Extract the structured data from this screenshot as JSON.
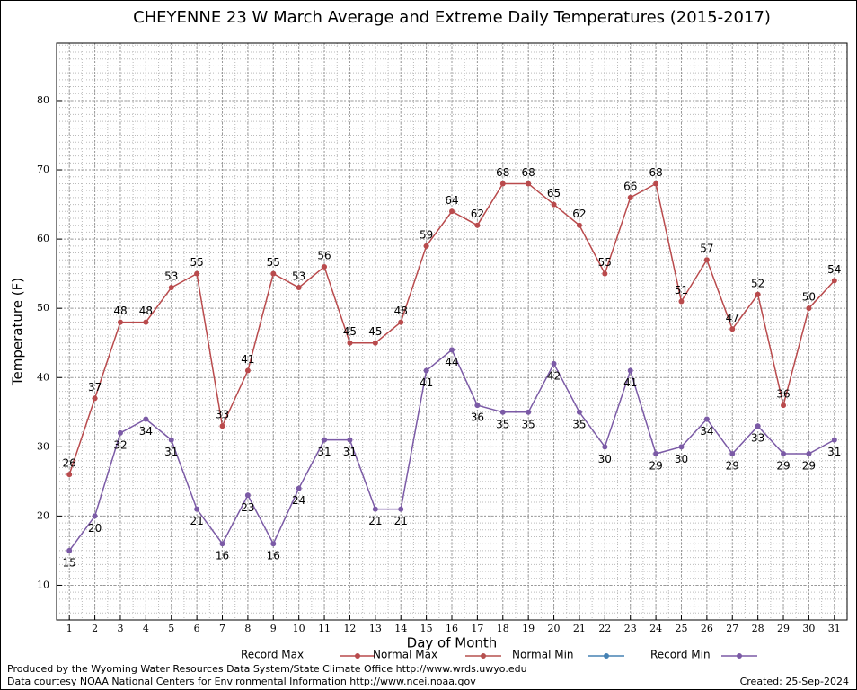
{
  "chart_data": {
    "type": "line",
    "title": "CHEYENNE 23 W March Average and Extreme Daily Temperatures (2015-2017)",
    "x_label": "Day of Month",
    "y_label": "Temperature (F)",
    "x": [
      1,
      2,
      3,
      4,
      5,
      6,
      7,
      8,
      9,
      10,
      11,
      12,
      13,
      14,
      15,
      16,
      17,
      18,
      19,
      20,
      21,
      22,
      23,
      24,
      25,
      26,
      27,
      28,
      29,
      30,
      31
    ],
    "xlim": [
      0.5,
      31.5
    ],
    "xticks": [
      1,
      2,
      3,
      4,
      5,
      6,
      7,
      8,
      9,
      10,
      11,
      12,
      13,
      14,
      15,
      16,
      17,
      18,
      19,
      20,
      21,
      22,
      23,
      24,
      25,
      26,
      27,
      28,
      29,
      30,
      31
    ],
    "ylim": [
      5,
      88.3
    ],
    "yticks": [
      10,
      20,
      30,
      40,
      50,
      60,
      70,
      80
    ],
    "grid": true,
    "series": [
      {
        "name": "Record Max",
        "color": "#b94a4c",
        "values": [
          26,
          37,
          48,
          48,
          53,
          55,
          33,
          41,
          55,
          53,
          56,
          45,
          45,
          48,
          59,
          64,
          62,
          68,
          68,
          65,
          62,
          55,
          66,
          68,
          51,
          57,
          47,
          52,
          36,
          50,
          54
        ]
      },
      {
        "name": "Normal Max",
        "color": "#b5504f",
        "values": [
          null,
          null,
          null,
          null,
          null,
          null,
          null,
          null,
          null,
          null,
          null,
          null,
          null,
          null,
          null,
          null,
          null,
          null,
          null,
          null,
          null,
          null,
          null,
          null,
          null,
          null,
          null,
          null,
          null,
          null,
          null
        ]
      },
      {
        "name": "Normal Min",
        "color": "#4682b4",
        "values": [
          null,
          null,
          null,
          null,
          null,
          null,
          null,
          null,
          null,
          null,
          null,
          null,
          null,
          null,
          null,
          null,
          null,
          null,
          null,
          null,
          null,
          null,
          null,
          null,
          null,
          null,
          null,
          null,
          null,
          null,
          null
        ]
      },
      {
        "name": "Record Min",
        "color": "#7b5aa6",
        "values": [
          15,
          20,
          32,
          34,
          31,
          21,
          16,
          23,
          16,
          24,
          31,
          31,
          21,
          21,
          41,
          44,
          36,
          35,
          35,
          42,
          35,
          30,
          41,
          29,
          30,
          34,
          29,
          33,
          29,
          29,
          31
        ]
      }
    ],
    "footer_left": [
      "Produced by the Wyoming Water Resources Data System/State Climate Office http://www.wrds.uwyo.edu",
      "Data courtesy NOAA National Centers for Environmental Information http://www.ncei.noaa.gov"
    ],
    "footer_right": "Created:  25-Sep-2024"
  }
}
